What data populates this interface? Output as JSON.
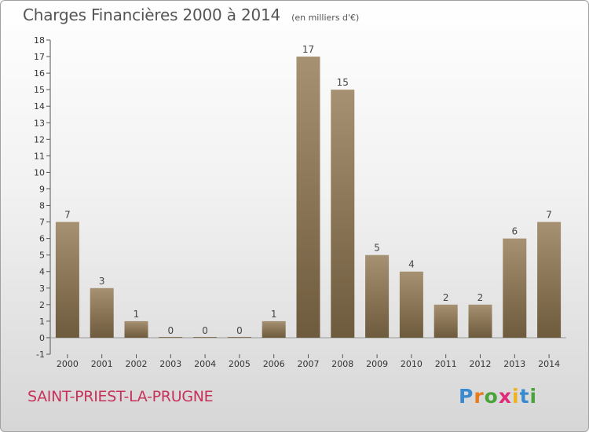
{
  "header": {
    "title": "Charges Financières 2000 à 2014",
    "subtitle": "(en milliers d'€)"
  },
  "footer": {
    "commune": "SAINT-PRIEST-LA-PRUGNE",
    "logo_text": "Proxiti"
  },
  "colors": {
    "bar_top": "#a69272",
    "bar_bottom": "#6e5a3c",
    "commune_text": "#c8325a"
  },
  "chart_data": {
    "type": "bar",
    "categories": [
      "2000",
      "2001",
      "2002",
      "2003",
      "2004",
      "2005",
      "2006",
      "2007",
      "2008",
      "2009",
      "2010",
      "2011",
      "2012",
      "2013",
      "2014"
    ],
    "values": [
      7,
      3,
      1,
      0,
      0,
      0,
      1,
      17,
      15,
      5,
      4,
      2,
      2,
      6,
      7
    ],
    "title": "Charges Financières 2000 à 2014",
    "subtitle": "(en milliers d'€)",
    "xlabel": "",
    "ylabel": "",
    "ylim": [
      -1,
      18
    ],
    "yticks": [
      -1,
      0,
      1,
      2,
      3,
      4,
      5,
      6,
      7,
      8,
      9,
      10,
      11,
      12,
      13,
      14,
      15,
      16,
      17,
      18
    ],
    "grid": false,
    "legend": "none"
  }
}
